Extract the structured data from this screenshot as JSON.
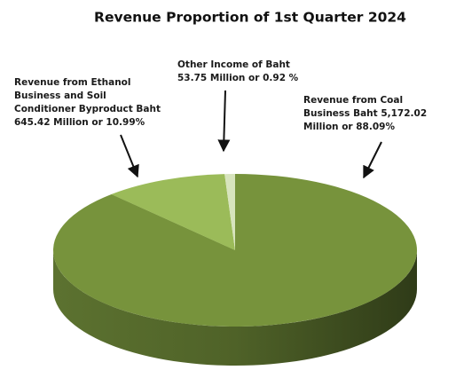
{
  "chart_data": {
    "type": "pie",
    "title": "Revenue Proportion of 1st Quarter 2024",
    "categories": [
      [
        "Revenue from Coal",
        "Business Baht 5,172.02",
        "Million or 88.09%"
      ],
      [
        "Revenue from Ethanol",
        "Business and Soil",
        "Conditioner Byproduct Baht",
        "645.42 Million or 10.99%"
      ],
      [
        "Other Income of Baht",
        "53.75 Million or 0.92 %"
      ]
    ],
    "values": [
      88.09,
      10.99,
      0.92
    ],
    "colors": [
      "#77933c",
      "#9bbb59",
      "#d7e4bd"
    ]
  }
}
